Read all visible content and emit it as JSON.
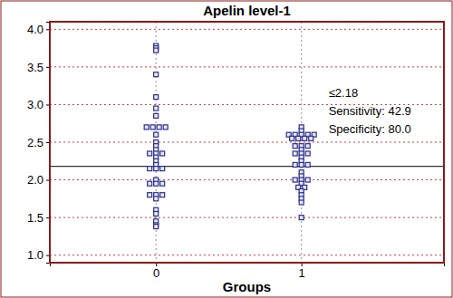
{
  "chart_data": {
    "type": "scatter",
    "title": "Apelin level-1",
    "x_label": "Groups",
    "color": "#2b2f8f",
    "marker": "square",
    "grid": true,
    "xlim": [
      -0.73,
      1.98
    ],
    "xticks": [
      0,
      1
    ],
    "ylim": [
      0.9,
      4.1
    ],
    "yticks": [
      {
        "value": 1,
        "label": "1.0"
      },
      {
        "value": 1.5,
        "label": "1.5"
      },
      {
        "value": 2,
        "label": "2.0"
      },
      {
        "value": 2.5,
        "label": "2.5"
      },
      {
        "value": 3,
        "label": "3.0"
      },
      {
        "value": 3.5,
        "label": "3.5"
      },
      {
        "value": 4,
        "label": "4.0"
      }
    ],
    "reference_line": {
      "value": 2.18,
      "label": "≤2.18"
    },
    "annotations": [
      "Sensitivity: 42.9",
      "Specificity: 80.0"
    ],
    "x": [
      0,
      0,
      0,
      0,
      0,
      0,
      0,
      0,
      0,
      0,
      0,
      0,
      0,
      0,
      0,
      0,
      0,
      0,
      0,
      0,
      0,
      0,
      0,
      0,
      0,
      0,
      0,
      0,
      0,
      0,
      0,
      0,
      0,
      0,
      0,
      0,
      0,
      1,
      1,
      1,
      1,
      1,
      1,
      1,
      1,
      1,
      1,
      1,
      1,
      1,
      1,
      1,
      1,
      1,
      1,
      1,
      1,
      1,
      1,
      1,
      1,
      1,
      1,
      1,
      1,
      1,
      1,
      1,
      1,
      1,
      1,
      1,
      1
    ],
    "values": [
      3.78,
      3.75,
      3.72,
      3.4,
      3.1,
      2.95,
      2.85,
      2.7,
      2.7,
      2.7,
      2.7,
      2.6,
      2.5,
      2.45,
      2.4,
      2.35,
      2.35,
      2.35,
      2.3,
      2.25,
      2.2,
      2.15,
      2.15,
      2.15,
      2.0,
      1.95,
      1.95,
      1.95,
      1.8,
      1.8,
      1.8,
      1.75,
      1.6,
      1.55,
      1.45,
      1.4,
      1.38,
      2.7,
      2.65,
      2.6,
      2.6,
      2.6,
      2.6,
      2.6,
      2.55,
      2.55,
      2.55,
      2.55,
      2.45,
      2.45,
      2.45,
      2.4,
      2.35,
      2.35,
      2.35,
      2.3,
      2.25,
      2.2,
      2.2,
      2.2,
      2.1,
      2.05,
      2.0,
      2.0,
      2.0,
      1.95,
      1.9,
      1.9,
      1.85,
      1.8,
      1.75,
      1.7,
      1.5
    ]
  }
}
